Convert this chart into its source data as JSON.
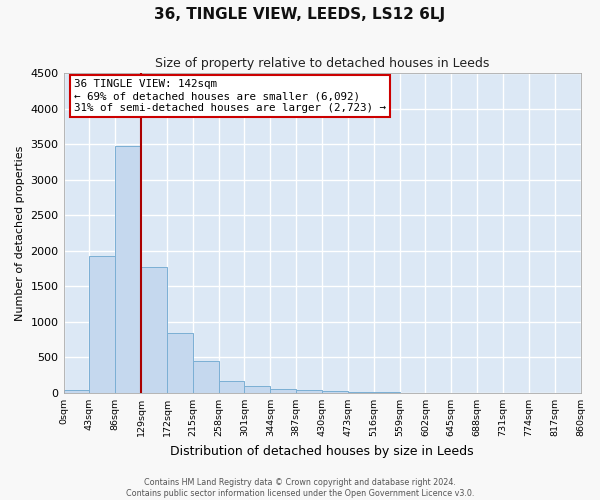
{
  "title": "36, TINGLE VIEW, LEEDS, LS12 6LJ",
  "subtitle": "Size of property relative to detached houses in Leeds",
  "xlabel": "Distribution of detached houses by size in Leeds",
  "ylabel": "Number of detached properties",
  "bar_color": "#c5d8ee",
  "bar_edge_color": "#7bafd4",
  "bg_color": "#dce8f5",
  "grid_color": "#ffffff",
  "vline_x": 129,
  "vline_color": "#aa0000",
  "bin_edges": [
    0,
    43,
    86,
    129,
    172,
    215,
    258,
    301,
    344,
    387,
    430,
    473,
    516,
    559,
    602,
    645,
    688,
    731,
    774,
    817,
    860
  ],
  "bin_heights": [
    35,
    1920,
    3480,
    1770,
    845,
    455,
    170,
    95,
    50,
    38,
    28,
    18,
    8,
    3,
    0,
    0,
    0,
    0,
    0,
    0
  ],
  "ylim": [
    0,
    4500
  ],
  "yticks": [
    0,
    500,
    1000,
    1500,
    2000,
    2500,
    3000,
    3500,
    4000,
    4500
  ],
  "annotation_title": "36 TINGLE VIEW: 142sqm",
  "annotation_line1": "← 69% of detached houses are smaller (6,092)",
  "annotation_line2": "31% of semi-detached houses are larger (2,723) →",
  "footer1": "Contains HM Land Registry data © Crown copyright and database right 2024.",
  "footer2": "Contains public sector information licensed under the Open Government Licence v3.0."
}
